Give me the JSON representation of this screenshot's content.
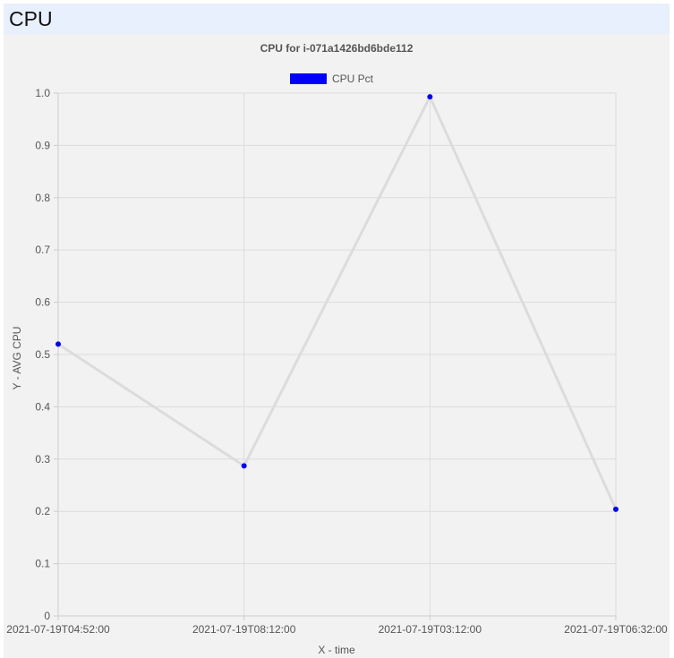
{
  "page": {
    "title": "CPU"
  },
  "chart_data": {
    "type": "line",
    "title": "CPU for i-071a1426bd6bde112",
    "xlabel": "X - time",
    "ylabel": "Y - AVG CPU",
    "categories": [
      "2021-07-19T04:52:00",
      "2021-07-19T08:12:00",
      "2021-07-19T03:12:00",
      "2021-07-19T06:32:00"
    ],
    "series": [
      {
        "name": "CPU Pct",
        "values": [
          0.52,
          0.287,
          0.993,
          0.204
        ],
        "line_color": "#dcdcdc",
        "point_color": "#0000ee"
      }
    ],
    "ylim": [
      0,
      1
    ],
    "yticks": [
      "0",
      "0.1",
      "0.2",
      "0.3",
      "0.4",
      "0.5",
      "0.6",
      "0.7",
      "0.8",
      "0.9",
      "1.0"
    ],
    "grid": true,
    "legend": "top",
    "legend_color": "#0000ff"
  }
}
